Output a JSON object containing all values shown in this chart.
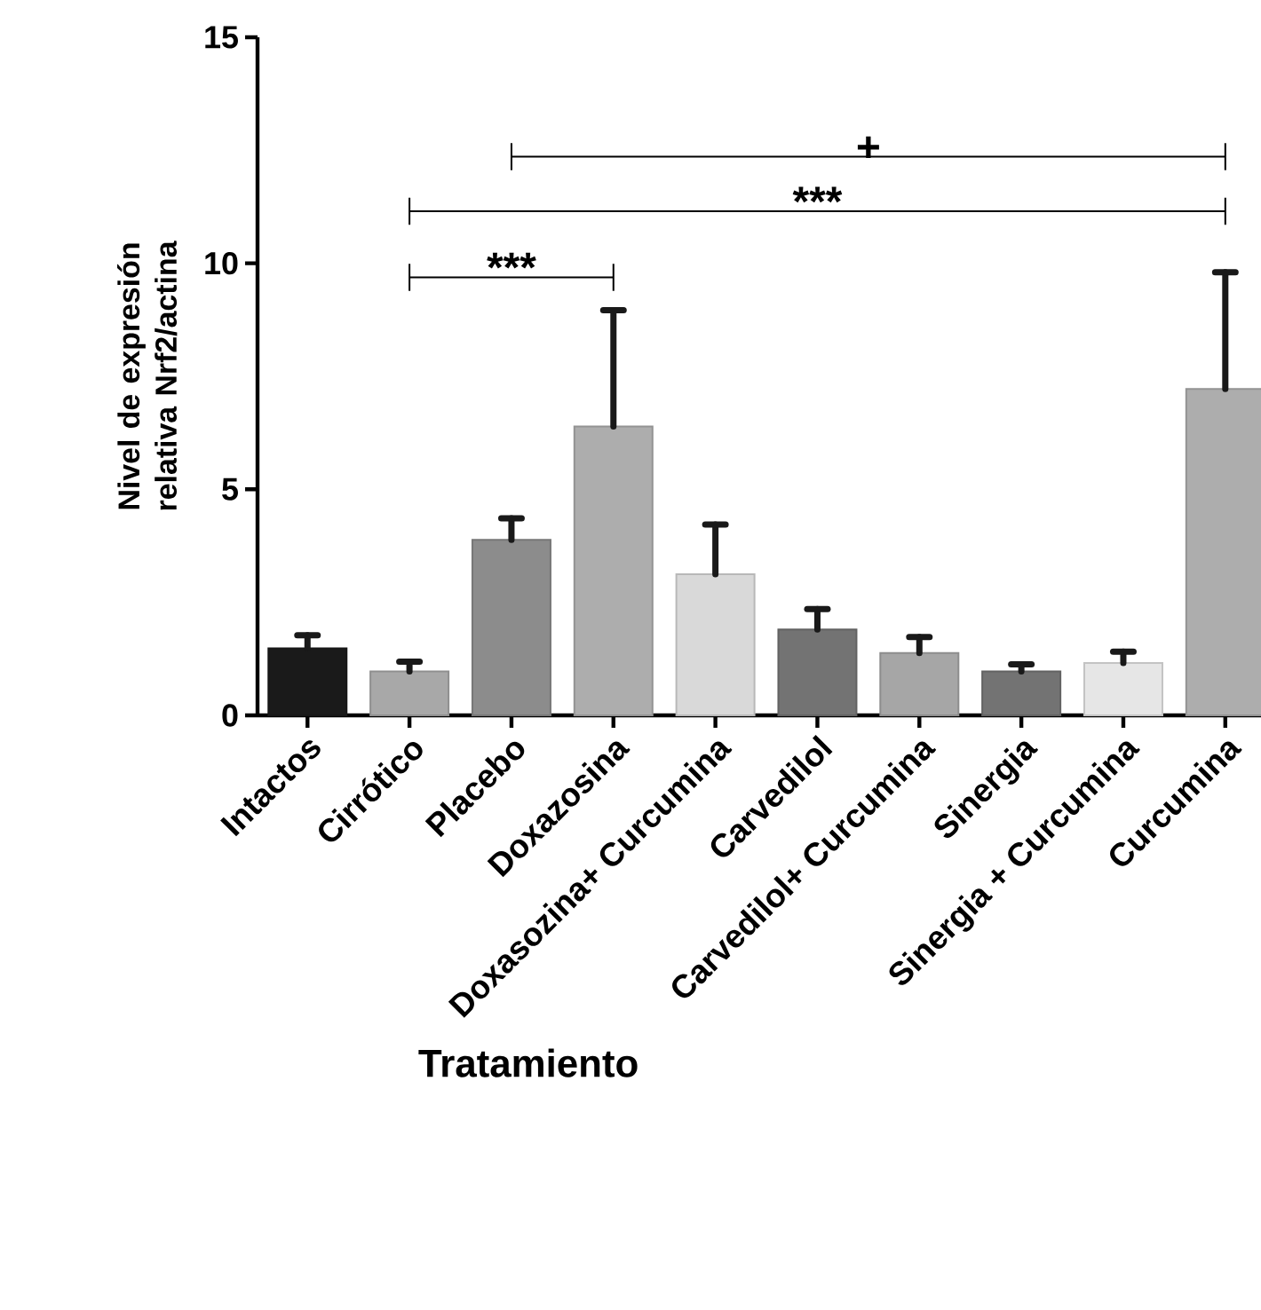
{
  "chart_data": {
    "type": "bar",
    "xlabel": "Tratamiento",
    "ylabel": "Nivel de expresión relativa Nrf2/actina",
    "categories": [
      "Intactos",
      "Cirrótico",
      "Placebo",
      "Doxazosina",
      "Doxasozina+ Curcumina",
      "Carvedilol",
      "Carvedilol+ Curcumina",
      "Sinergia",
      "Sinergia + Curcumina",
      "Curcumina"
    ],
    "values": [
      1.48,
      0.97,
      3.88,
      6.39,
      3.12,
      1.9,
      1.38,
      0.97,
      1.16,
      7.22
    ],
    "errors": [
      [
        1.48,
        1.77
      ],
      [
        0.97,
        1.19
      ],
      [
        3.88,
        4.36
      ],
      [
        6.39,
        8.96
      ],
      [
        3.12,
        4.22
      ],
      [
        1.9,
        2.35
      ],
      [
        1.38,
        1.73
      ],
      [
        0.97,
        1.13
      ],
      [
        1.16,
        1.41
      ],
      [
        7.22,
        9.8
      ]
    ],
    "colors": [
      "#1a1a1a",
      "#a8a8a8",
      "#8c8c8c",
      "#adadad",
      "#d9d9d9",
      "#737373",
      "#a6a6a6",
      "#737373",
      "#e6e6e6",
      "#adadad"
    ],
    "ylim": [
      0,
      15
    ],
    "yticks": [
      0,
      5,
      10,
      15
    ],
    "annotations": [
      "***",
      "***",
      "+"
    ]
  }
}
